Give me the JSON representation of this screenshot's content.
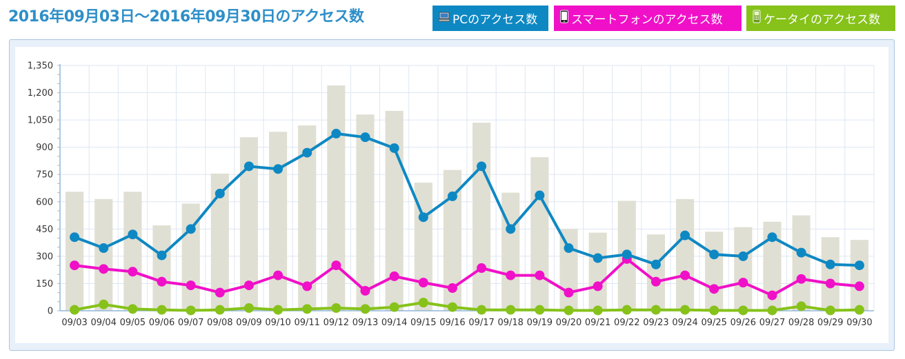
{
  "header": {
    "title": "2016年09月03日～2016年09月30日のアクセス数",
    "buttons": [
      {
        "label": "PCのアクセス数",
        "icon": "computer-icon",
        "color": "#0e88c3"
      },
      {
        "label": "スマートフォンのアクセス数",
        "icon": "smartphone-icon",
        "color": "#f010c8"
      },
      {
        "label": "ケータイのアクセス数",
        "icon": "feature-phone-icon",
        "color": "#86c21a"
      }
    ]
  },
  "chart_data": {
    "type": "bar",
    "title": "",
    "xlabel": "",
    "ylabel": "",
    "ylim": [
      0,
      1350
    ],
    "yticks": [
      0,
      150,
      300,
      450,
      600,
      750,
      900,
      1050,
      1200,
      1350
    ],
    "ytick_labels": [
      "0",
      "150",
      "300",
      "450",
      "600",
      "750",
      "900",
      "1,050",
      "1,200",
      "1,350"
    ],
    "grid": true,
    "categories": [
      "09/03",
      "09/04",
      "09/05",
      "09/06",
      "09/07",
      "09/08",
      "09/09",
      "09/10",
      "09/11",
      "09/12",
      "09/13",
      "09/14",
      "09/15",
      "09/16",
      "09/17",
      "09/18",
      "09/19",
      "09/20",
      "09/21",
      "09/22",
      "09/23",
      "09/24",
      "09/25",
      "09/26",
      "09/27",
      "09/28",
      "09/29",
      "09/30"
    ],
    "series": [
      {
        "type": "bar",
        "color": "#e0dfd3",
        "values": [
          655,
          615,
          655,
          470,
          590,
          755,
          955,
          985,
          1020,
          1240,
          1080,
          1100,
          705,
          775,
          1035,
          650,
          845,
          450,
          430,
          605,
          420,
          615,
          435,
          460,
          490,
          525,
          405,
          390
        ]
      },
      {
        "type": "line",
        "name": "PCのアクセス数",
        "color": "#0e88c3",
        "values": [
          405,
          345,
          420,
          305,
          450,
          645,
          795,
          780,
          870,
          975,
          955,
          895,
          515,
          630,
          795,
          450,
          635,
          345,
          290,
          310,
          255,
          415,
          310,
          300,
          405,
          320,
          255,
          250
        ]
      },
      {
        "type": "line",
        "name": "スマートフォンのアクセス数",
        "color": "#f010c8",
        "values": [
          250,
          230,
          215,
          160,
          140,
          100,
          140,
          195,
          135,
          250,
          110,
          190,
          155,
          125,
          235,
          195,
          195,
          100,
          135,
          285,
          160,
          195,
          120,
          155,
          85,
          175,
          150,
          135
        ]
      },
      {
        "type": "line",
        "name": "ケータイのアクセス数",
        "color": "#86c21a",
        "values": [
          5,
          35,
          10,
          5,
          2,
          5,
          15,
          5,
          10,
          15,
          10,
          20,
          45,
          20,
          5,
          5,
          5,
          2,
          2,
          5,
          5,
          5,
          2,
          2,
          2,
          25,
          2,
          5
        ]
      }
    ]
  }
}
